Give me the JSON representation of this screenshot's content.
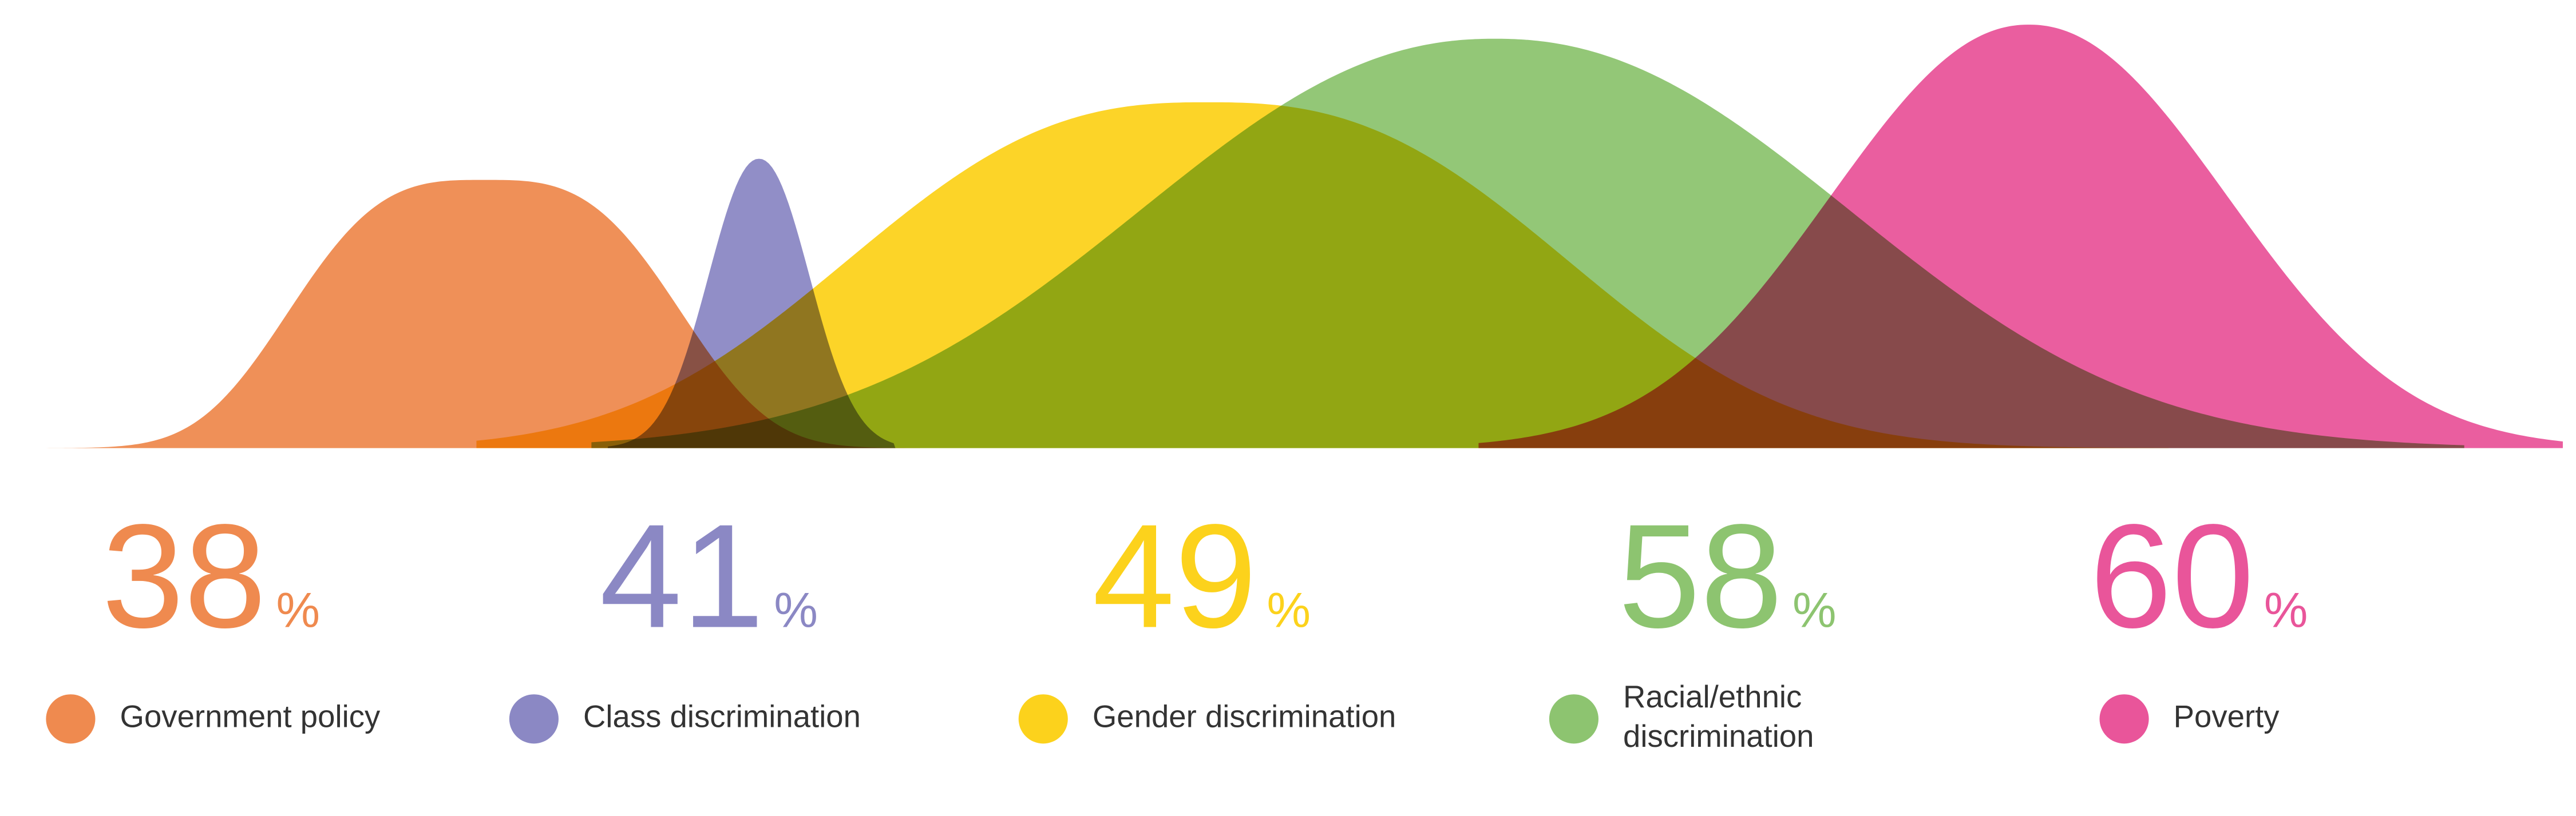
{
  "chart_data": {
    "type": "bell",
    "categories": [
      "Government policy",
      "Class discrimination",
      "Gender discrimination",
      "Racial/ethnic discrimination",
      "Poverty"
    ],
    "values": [
      38,
      41,
      49,
      58,
      60
    ],
    "unit": "%",
    "colors": [
      "#ef8a4f",
      "#8b88c4",
      "#fcd21c",
      "#8dc470",
      "#e9559a"
    ]
  }
}
